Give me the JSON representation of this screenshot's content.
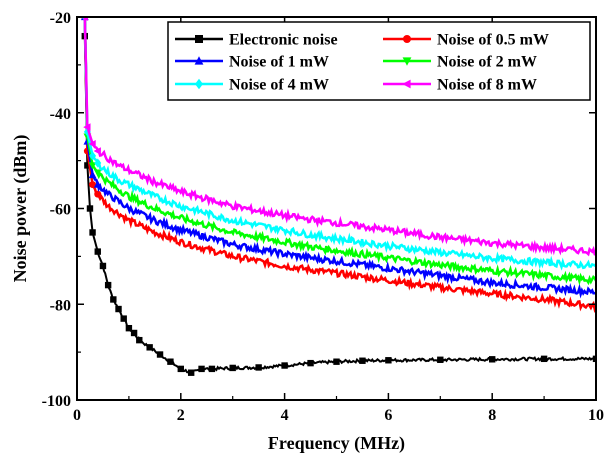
{
  "chart_data": {
    "type": "line",
    "title": "",
    "xlabel": "Frequency (MHz)",
    "ylabel": "Noise power (dBm)",
    "xlim": [
      0,
      10
    ],
    "ylim": [
      -100,
      -20
    ],
    "x_ticks": [
      0,
      2,
      4,
      6,
      8,
      10
    ],
    "y_ticks": [
      -100,
      -80,
      -60,
      -40,
      -20
    ],
    "grid": false,
    "legend_position": "top-right",
    "series": [
      {
        "name": "Electronic noise",
        "color": "#000000",
        "marker": "square",
        "points": [
          [
            0.15,
            -24
          ],
          [
            0.2,
            -51
          ],
          [
            0.25,
            -60
          ],
          [
            0.3,
            -65
          ],
          [
            0.4,
            -69
          ],
          [
            0.5,
            -72
          ],
          [
            0.6,
            -76
          ],
          [
            0.7,
            -79
          ],
          [
            0.8,
            -81
          ],
          [
            0.9,
            -83
          ],
          [
            1.0,
            -85
          ],
          [
            1.1,
            -86
          ],
          [
            1.2,
            -87.5
          ],
          [
            1.4,
            -89
          ],
          [
            1.6,
            -90.5
          ],
          [
            1.8,
            -92
          ],
          [
            2.0,
            -93.5
          ],
          [
            2.2,
            -94.3
          ],
          [
            2.4,
            -93.5
          ],
          [
            2.6,
            -93.5
          ],
          [
            3.0,
            -93.3
          ],
          [
            3.5,
            -93.2
          ],
          [
            4.0,
            -92.8
          ],
          [
            4.5,
            -92.3
          ],
          [
            5.0,
            -92
          ],
          [
            5.5,
            -91.8
          ],
          [
            6.0,
            -91.7
          ],
          [
            7.0,
            -91.6
          ],
          [
            8.0,
            -91.5
          ],
          [
            9.0,
            -91.4
          ],
          [
            10.0,
            -91.4
          ]
        ]
      },
      {
        "name": "Noise of 0.5 mW",
        "color": "#ff0000",
        "marker": "circle",
        "points": [
          [
            0.15,
            -20
          ],
          [
            0.2,
            -48
          ],
          [
            0.3,
            -55
          ],
          [
            0.4,
            -57
          ],
          [
            0.6,
            -59.5
          ],
          [
            0.8,
            -61
          ],
          [
            1.0,
            -62.5
          ],
          [
            1.5,
            -65
          ],
          [
            2.0,
            -67
          ],
          [
            2.5,
            -68.5
          ],
          [
            3.0,
            -70
          ],
          [
            3.5,
            -71
          ],
          [
            4.0,
            -72
          ],
          [
            4.5,
            -72.8
          ],
          [
            5.0,
            -73.5
          ],
          [
            6.0,
            -75
          ],
          [
            7.0,
            -76.5
          ],
          [
            8.0,
            -77.8
          ],
          [
            9.0,
            -79
          ],
          [
            10.0,
            -80.5
          ]
        ]
      },
      {
        "name": "Noise of 1 mW",
        "color": "#0000ff",
        "marker": "triangle-up",
        "points": [
          [
            0.15,
            -20
          ],
          [
            0.2,
            -46
          ],
          [
            0.3,
            -53
          ],
          [
            0.4,
            -55
          ],
          [
            0.6,
            -57
          ],
          [
            0.8,
            -58.5
          ],
          [
            1.0,
            -60
          ],
          [
            1.5,
            -62.5
          ],
          [
            2.0,
            -64.5
          ],
          [
            2.5,
            -66
          ],
          [
            3.0,
            -67.5
          ],
          [
            3.5,
            -68.5
          ],
          [
            4.0,
            -69.5
          ],
          [
            4.5,
            -70.3
          ],
          [
            5.0,
            -71
          ],
          [
            6.0,
            -72.5
          ],
          [
            7.0,
            -74
          ],
          [
            8.0,
            -75.5
          ],
          [
            9.0,
            -76.5
          ],
          [
            10.0,
            -77.5
          ]
        ]
      },
      {
        "name": "Noise of 2 mW",
        "color": "#00ff00",
        "marker": "triangle-down",
        "points": [
          [
            0.15,
            -20
          ],
          [
            0.2,
            -45
          ],
          [
            0.3,
            -51
          ],
          [
            0.4,
            -52.5
          ],
          [
            0.6,
            -54.5
          ],
          [
            0.8,
            -56
          ],
          [
            1.0,
            -57.5
          ],
          [
            1.5,
            -60
          ],
          [
            2.0,
            -62
          ],
          [
            2.5,
            -63.5
          ],
          [
            3.0,
            -65
          ],
          [
            3.5,
            -66
          ],
          [
            4.0,
            -67
          ],
          [
            4.5,
            -68
          ],
          [
            5.0,
            -68.8
          ],
          [
            6.0,
            -70.3
          ],
          [
            7.0,
            -71.8
          ],
          [
            8.0,
            -73
          ],
          [
            9.0,
            -74
          ],
          [
            10.0,
            -75
          ]
        ]
      },
      {
        "name": "Noise of 4 mW",
        "color": "#00ffff",
        "marker": "diamond",
        "points": [
          [
            0.15,
            -20
          ],
          [
            0.2,
            -44
          ],
          [
            0.3,
            -49
          ],
          [
            0.4,
            -50.5
          ],
          [
            0.6,
            -52.5
          ],
          [
            0.8,
            -54
          ],
          [
            1.0,
            -55
          ],
          [
            1.5,
            -57.5
          ],
          [
            2.0,
            -59.5
          ],
          [
            2.5,
            -61
          ],
          [
            3.0,
            -62.5
          ],
          [
            3.5,
            -63.5
          ],
          [
            4.0,
            -64.5
          ],
          [
            4.5,
            -65.5
          ],
          [
            5.0,
            -66.3
          ],
          [
            6.0,
            -67.8
          ],
          [
            7.0,
            -69.2
          ],
          [
            8.0,
            -70.4
          ],
          [
            9.0,
            -71.3
          ],
          [
            10.0,
            -72
          ]
        ]
      },
      {
        "name": "Noise of 8 mW",
        "color": "#ff00ff",
        "marker": "triangle-left",
        "points": [
          [
            0.15,
            -20
          ],
          [
            0.2,
            -43
          ],
          [
            0.3,
            -46.5
          ],
          [
            0.4,
            -48
          ],
          [
            0.6,
            -49.5
          ],
          [
            0.8,
            -51
          ],
          [
            1.0,
            -52
          ],
          [
            1.5,
            -54.5
          ],
          [
            2.0,
            -56.5
          ],
          [
            2.5,
            -58
          ],
          [
            3.0,
            -59.5
          ],
          [
            3.5,
            -60.5
          ],
          [
            4.0,
            -61.5
          ],
          [
            4.5,
            -62.3
          ],
          [
            5.0,
            -63
          ],
          [
            6.0,
            -64.5
          ],
          [
            7.0,
            -66
          ],
          [
            8.0,
            -67.2
          ],
          [
            9.0,
            -68.2
          ],
          [
            10.0,
            -69
          ]
        ]
      }
    ]
  }
}
